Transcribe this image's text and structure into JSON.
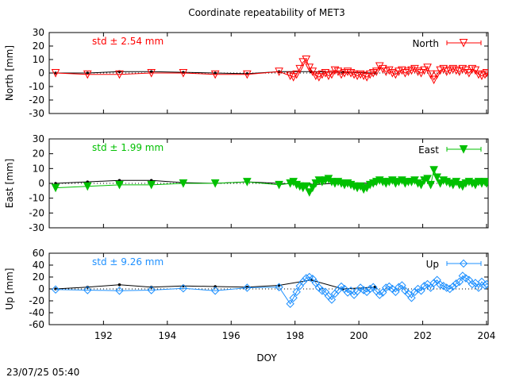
{
  "chart_data": {
    "type": "line",
    "title": "Coordinate repeatability of MET3",
    "xlabel": "DOY",
    "xlim": [
      190.3,
      204.05
    ],
    "xticks": [
      192,
      194,
      196,
      198,
      200,
      202,
      204
    ],
    "grid": false,
    "timestamp": "23/07/25 05:40",
    "panels": [
      {
        "name": "north",
        "ylabel": "North [mm]",
        "ylim": [
          -30,
          30
        ],
        "yticks": [
          30,
          20,
          10,
          0,
          -10,
          -20,
          -30
        ],
        "std_label": "std ± 2.54 mm",
        "legend": "North",
        "color": "#ff0000",
        "marker": "triangle-down-open",
        "legend_position": "top-right",
        "ref_series": {
          "x": [
            190.5,
            191.5,
            192.5,
            193.5,
            194.5,
            195.5,
            196.5,
            197.5,
            198.5,
            199.5,
            200.5
          ],
          "values": [
            0,
            0,
            1,
            1,
            0.5,
            0,
            -0.5,
            1,
            1,
            0.5,
            0
          ]
        },
        "series": {
          "x": [
            190.5,
            191.5,
            192.5,
            193.5,
            194.5,
            195.5,
            196.5,
            197.5,
            197.85,
            197.95,
            198.05,
            198.15,
            198.25,
            198.35,
            198.45,
            198.55,
            198.65,
            198.75,
            198.85,
            198.95,
            199.05,
            199.15,
            199.25,
            199.35,
            199.45,
            199.55,
            199.65,
            199.75,
            199.85,
            199.95,
            200.05,
            200.15,
            200.25,
            200.35,
            200.45,
            200.55,
            200.65,
            200.75,
            200.85,
            200.95,
            201.05,
            201.15,
            201.25,
            201.35,
            201.45,
            201.55,
            201.65,
            201.75,
            201.85,
            201.95,
            202.05,
            202.15,
            202.25,
            202.35,
            202.45,
            202.55,
            202.65,
            202.75,
            202.85,
            202.95,
            203.05,
            203.15,
            203.25,
            203.35,
            203.45,
            203.55,
            203.65,
            203.75,
            203.85,
            203.95,
            204.0
          ],
          "values": [
            0,
            -1,
            -1,
            0,
            0,
            -1,
            -1,
            1,
            -2,
            -3,
            -1,
            3,
            8,
            10,
            4,
            1,
            -2,
            -3,
            -1,
            0,
            -2,
            -1,
            2,
            1,
            -1,
            0,
            1,
            0,
            -1,
            -2,
            -1,
            -2,
            -3,
            -1,
            0,
            1,
            5,
            3,
            1,
            2,
            0,
            -1,
            1,
            2,
            0,
            1,
            2,
            3,
            1,
            0,
            2,
            4,
            -1,
            -5,
            -1,
            2,
            3,
            1,
            2,
            3,
            2,
            1,
            3,
            2,
            0,
            3,
            2,
            -1,
            -2,
            -1,
            0
          ]
        }
      },
      {
        "name": "east",
        "ylabel": "East [mm]",
        "ylim": [
          -30,
          30
        ],
        "yticks": [
          30,
          20,
          10,
          0,
          -10,
          -20,
          -30
        ],
        "std_label": "std ± 1.99 mm",
        "legend": "East",
        "color": "#00c000",
        "marker": "triangle-down-filled",
        "legend_position": "top-right",
        "ref_series": {
          "x": [
            190.5,
            191.5,
            192.5,
            193.5,
            194.5,
            195.5,
            196.5,
            197.5,
            198.5,
            199.5,
            200.5
          ],
          "values": [
            0,
            1,
            2,
            2,
            0.5,
            0,
            1,
            0,
            -1,
            0.5,
            0
          ]
        },
        "series": {
          "x": [
            190.5,
            191.5,
            192.5,
            193.5,
            194.5,
            195.5,
            196.5,
            197.5,
            197.85,
            197.95,
            198.05,
            198.15,
            198.25,
            198.35,
            198.45,
            198.55,
            198.65,
            198.75,
            198.85,
            198.95,
            199.05,
            199.15,
            199.25,
            199.35,
            199.45,
            199.55,
            199.65,
            199.75,
            199.85,
            199.95,
            200.05,
            200.15,
            200.25,
            200.35,
            200.45,
            200.55,
            200.65,
            200.75,
            200.85,
            200.95,
            201.05,
            201.15,
            201.25,
            201.35,
            201.45,
            201.55,
            201.65,
            201.75,
            201.85,
            201.95,
            202.05,
            202.15,
            202.25,
            202.35,
            202.45,
            202.55,
            202.65,
            202.75,
            202.85,
            202.95,
            203.05,
            203.15,
            203.25,
            203.35,
            203.45,
            203.55,
            203.65,
            203.75,
            203.85,
            203.95,
            204.0
          ],
          "values": [
            -3,
            -2,
            -1,
            -1,
            0,
            0,
            1,
            -1,
            0,
            1,
            -1,
            -2,
            -3,
            -2,
            -6,
            -3,
            0,
            2,
            1,
            2,
            3,
            1,
            0,
            1,
            0,
            -1,
            0,
            -1,
            -2,
            -3,
            -2,
            -4,
            -3,
            -1,
            0,
            1,
            2,
            1,
            0,
            1,
            2,
            0,
            1,
            2,
            0,
            1,
            1,
            2,
            0,
            -1,
            2,
            3,
            -1,
            9,
            4,
            0,
            2,
            1,
            0,
            -1,
            1,
            -1,
            -2,
            0,
            1,
            0,
            -1,
            1,
            0,
            1,
            0
          ]
        }
      },
      {
        "name": "up",
        "ylabel": "Up [mm]",
        "ylim": [
          -60,
          60
        ],
        "yticks": [
          60,
          40,
          20,
          0,
          -20,
          -40,
          -60
        ],
        "std_label": "std ± 9.26 mm",
        "legend": "Up",
        "color": "#1e90ff",
        "marker": "diamond-open",
        "legend_position": "top-right",
        "ref_series": {
          "x": [
            190.5,
            191.5,
            192.5,
            193.5,
            194.5,
            195.5,
            196.5,
            197.5,
            198.5,
            199.5,
            200.5
          ],
          "values": [
            0,
            3,
            7,
            3,
            5,
            4,
            3,
            6,
            15,
            0,
            3
          ]
        },
        "series": {
          "x": [
            190.5,
            191.5,
            192.5,
            193.5,
            194.5,
            195.5,
            196.5,
            197.5,
            197.85,
            197.95,
            198.05,
            198.15,
            198.25,
            198.35,
            198.45,
            198.55,
            198.65,
            198.75,
            198.85,
            198.95,
            199.05,
            199.15,
            199.25,
            199.35,
            199.45,
            199.55,
            199.65,
            199.75,
            199.85,
            199.95,
            200.05,
            200.15,
            200.25,
            200.35,
            200.45,
            200.55,
            200.65,
            200.75,
            200.85,
            200.95,
            201.05,
            201.15,
            201.25,
            201.35,
            201.45,
            201.55,
            201.65,
            201.75,
            201.85,
            201.95,
            202.05,
            202.15,
            202.25,
            202.35,
            202.45,
            202.55,
            202.65,
            202.75,
            202.85,
            202.95,
            203.05,
            203.15,
            203.25,
            203.35,
            203.45,
            203.55,
            203.65,
            203.75,
            203.85,
            203.95,
            204.0
          ],
          "values": [
            -1,
            -2,
            -3,
            -2,
            1,
            -3,
            2,
            3,
            -25,
            -15,
            -5,
            5,
            12,
            18,
            20,
            17,
            10,
            2,
            -3,
            -5,
            -12,
            -18,
            -8,
            -2,
            4,
            0,
            -6,
            -3,
            -10,
            -4,
            2,
            -2,
            -5,
            0,
            3,
            -4,
            -10,
            -6,
            2,
            4,
            0,
            -5,
            3,
            6,
            -3,
            -8,
            -15,
            -5,
            0,
            -3,
            5,
            8,
            2,
            10,
            15,
            7,
            5,
            2,
            0,
            4,
            9,
            12,
            22,
            18,
            15,
            8,
            10,
            2,
            12,
            6,
            8
          ]
        }
      }
    ]
  }
}
